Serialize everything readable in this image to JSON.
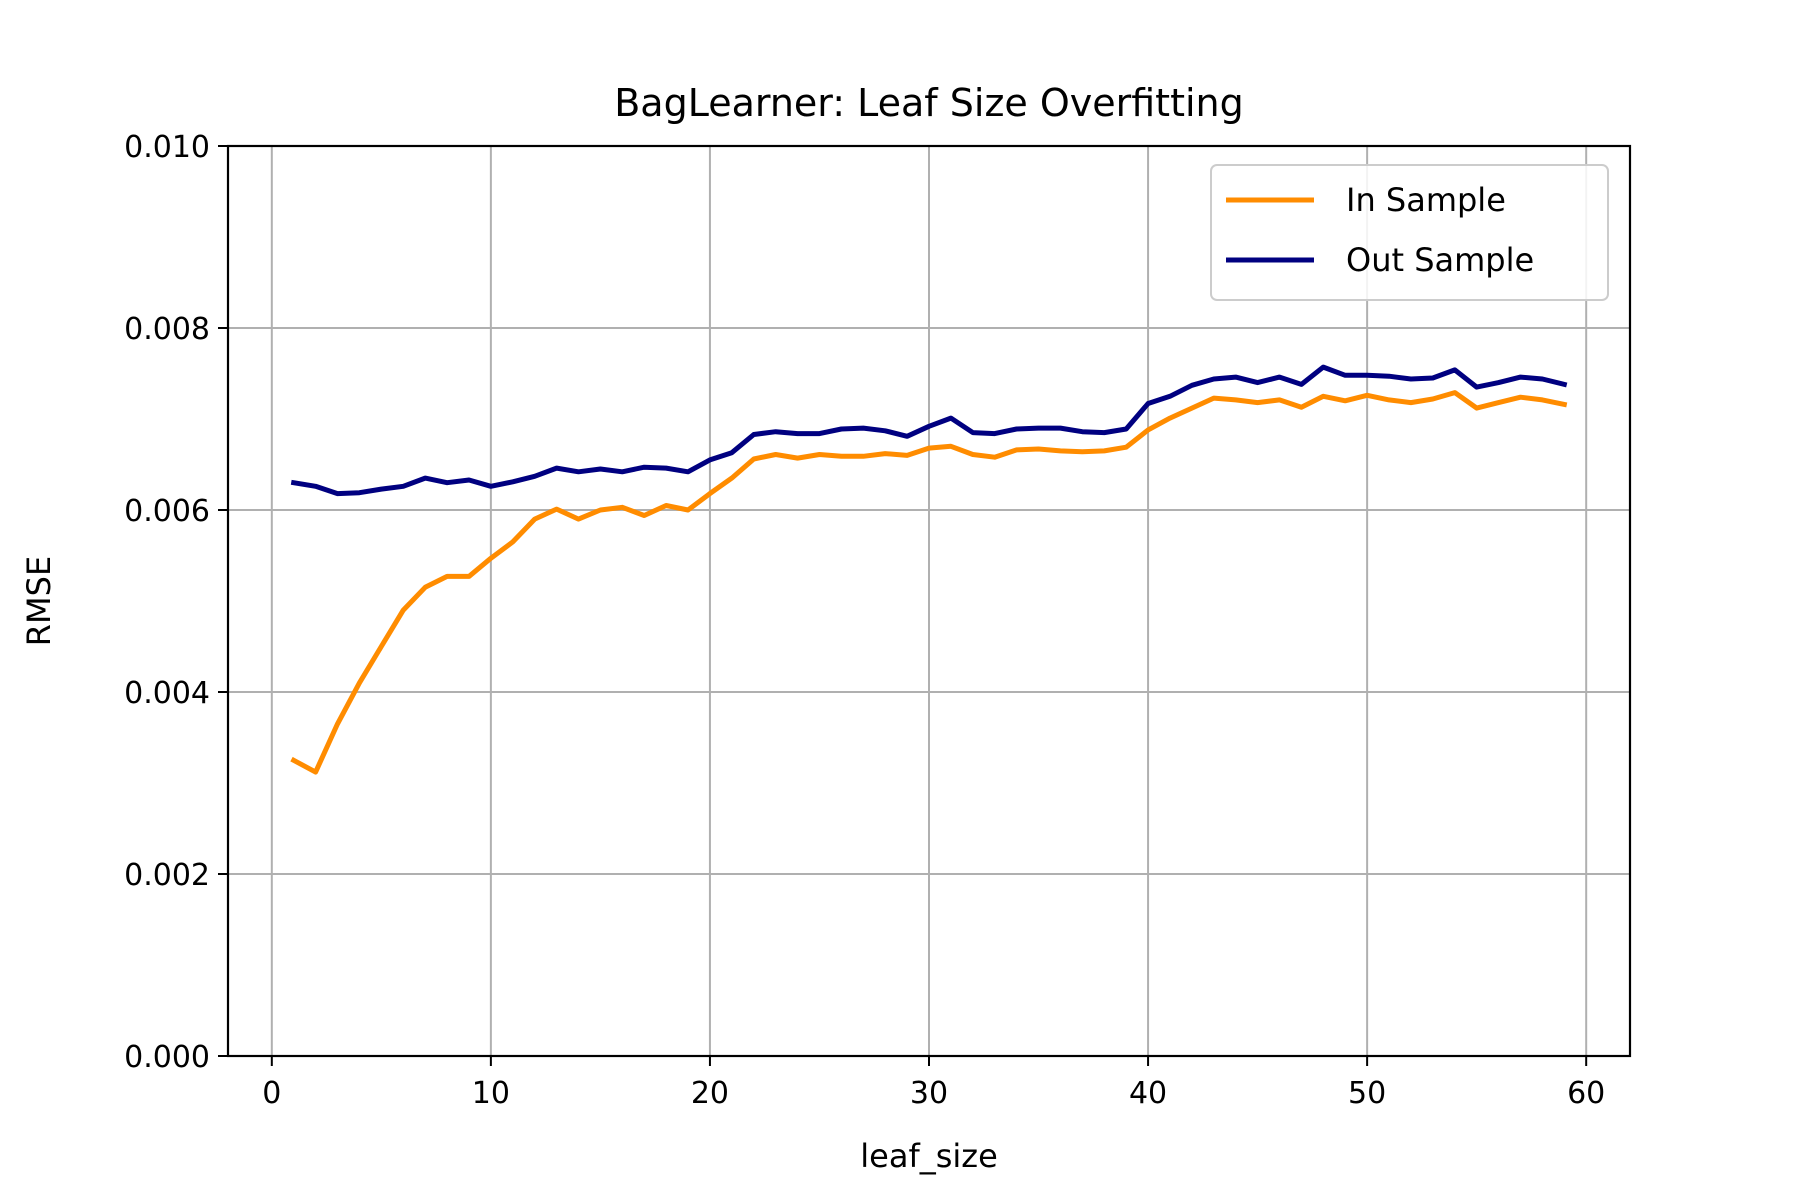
{
  "chart_data": {
    "type": "line",
    "title": "BagLearner: Leaf Size Overfitting",
    "xlabel": "leaf_size",
    "ylabel": "RMSE",
    "xlim": [
      -2,
      62
    ],
    "ylim": [
      0,
      0.01
    ],
    "xticks": [
      0,
      10,
      20,
      30,
      40,
      50,
      60
    ],
    "xtick_labels": [
      "0",
      "10",
      "20",
      "30",
      "40",
      "50",
      "60"
    ],
    "yticks": [
      0,
      0.002,
      0.004,
      0.006,
      0.008,
      0.01
    ],
    "ytick_labels": [
      "0.000",
      "0.002",
      "0.004",
      "0.006",
      "0.008",
      "0.010"
    ],
    "grid": true,
    "legend_position": "top-right",
    "x": [
      1,
      2,
      3,
      4,
      5,
      6,
      7,
      8,
      9,
      10,
      11,
      12,
      13,
      14,
      15,
      16,
      17,
      18,
      19,
      20,
      21,
      22,
      23,
      24,
      25,
      26,
      27,
      28,
      29,
      30,
      31,
      32,
      33,
      34,
      35,
      36,
      37,
      38,
      39,
      40,
      41,
      42,
      43,
      44,
      45,
      46,
      47,
      48,
      49,
      50,
      51,
      52,
      53,
      54,
      55,
      56,
      57,
      58,
      59
    ],
    "series": [
      {
        "name": "In Sample",
        "color": "#ff8c00",
        "values": [
          0.00325,
          0.00312,
          0.00365,
          0.0041,
          0.0045,
          0.0049,
          0.00515,
          0.00527,
          0.00527,
          0.00547,
          0.00565,
          0.0059,
          0.00601,
          0.0059,
          0.006,
          0.00603,
          0.00594,
          0.00605,
          0.006,
          0.00618,
          0.00635,
          0.00656,
          0.00661,
          0.00657,
          0.00661,
          0.00659,
          0.00659,
          0.00662,
          0.0066,
          0.00668,
          0.0067,
          0.00661,
          0.00658,
          0.00666,
          0.00667,
          0.00665,
          0.00664,
          0.00665,
          0.00669,
          0.00688,
          0.00701,
          0.00712,
          0.00723,
          0.00721,
          0.00718,
          0.00721,
          0.00713,
          0.00725,
          0.0072,
          0.00726,
          0.00721,
          0.00718,
          0.00722,
          0.00729,
          0.00712,
          0.00718,
          0.00724,
          0.00721,
          0.00716
        ]
      },
      {
        "name": "Out Sample",
        "color": "#000080",
        "values": [
          0.0063,
          0.00626,
          0.00618,
          0.00619,
          0.00623,
          0.00626,
          0.00635,
          0.0063,
          0.00633,
          0.00626,
          0.00631,
          0.00637,
          0.00646,
          0.00642,
          0.00645,
          0.00642,
          0.00647,
          0.00646,
          0.00642,
          0.00655,
          0.00663,
          0.00683,
          0.00686,
          0.00684,
          0.00684,
          0.00689,
          0.0069,
          0.00687,
          0.00681,
          0.00692,
          0.00701,
          0.00685,
          0.00684,
          0.00689,
          0.0069,
          0.0069,
          0.00686,
          0.00685,
          0.00689,
          0.00717,
          0.00725,
          0.00737,
          0.00744,
          0.00746,
          0.0074,
          0.00746,
          0.00738,
          0.00757,
          0.00748,
          0.00748,
          0.00747,
          0.00744,
          0.00745,
          0.00754,
          0.00735,
          0.0074,
          0.00746,
          0.00744,
          0.00738
        ]
      }
    ]
  }
}
